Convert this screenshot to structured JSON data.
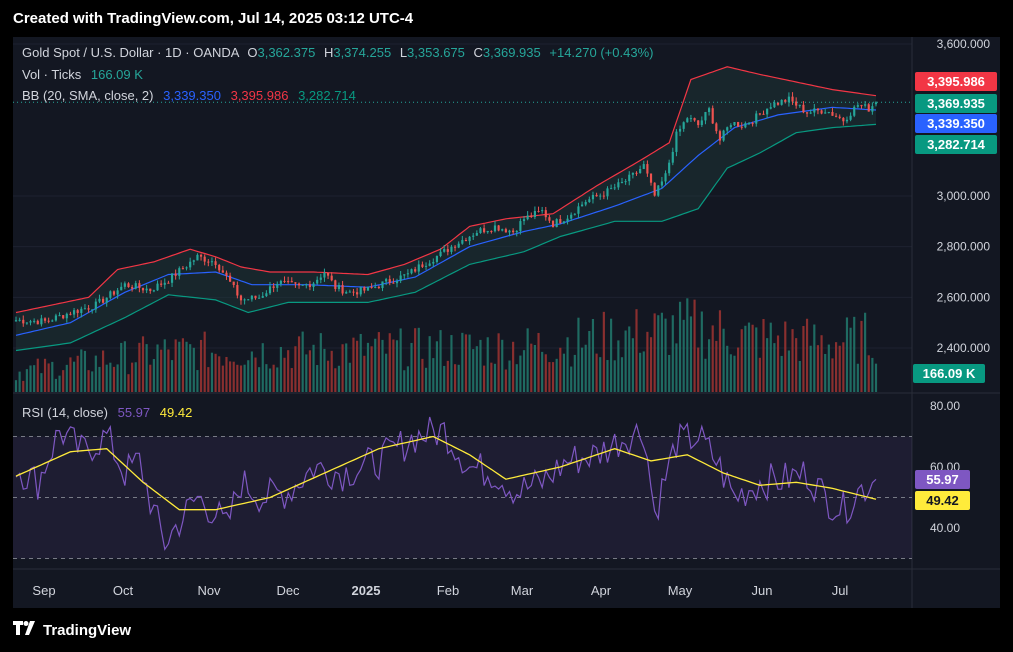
{
  "header": {
    "title": "Created with TradingView.com, Jul 14, 2025 03:12 UTC-4"
  },
  "legend": {
    "symbol": "Gold Spot / U.S. Dollar · 1D · OANDA",
    "o_label": "O",
    "o_value": "3,362.375",
    "h_label": "H",
    "h_value": "3,374.255",
    "l_label": "L",
    "l_value": "3,353.675",
    "c_label": "C",
    "c_value": "3,369.935",
    "change": "+14.270 (+0.43%)",
    "vol_label": "Vol · Ticks",
    "vol_value": "166.09 K",
    "bb_label": "BB (20, SMA, close, 2)",
    "bb_basis": "3,339.350",
    "bb_upper": "3,395.986",
    "bb_lower": "3,282.714",
    "rsi_label": "RSI (14, close)",
    "rsi_value": "55.97",
    "rsi_ma": "49.42"
  },
  "badges": {
    "upper": "3,395.986",
    "close": "3,369.935",
    "basis": "3,339.350",
    "lower": "3,282.714",
    "volume": "166.09 K",
    "rsi": "55.97",
    "rsi_ma": "49.42"
  },
  "colors": {
    "up": "#26a69a",
    "down": "#ef5350",
    "basis": "#2962ff",
    "upper": "#f23645",
    "lower": "#089981",
    "rsi": "#7e57c2",
    "rsi_ma": "#ffeb3b",
    "bg": "#131722"
  },
  "brand": "TradingView",
  "chart_data": {
    "type": "candlestick",
    "price_axis": {
      "ticks": [
        "3,600.000",
        "3,000.000",
        "2,800.000",
        "2,600.000",
        "2,400.000"
      ],
      "values": [
        3600,
        3000,
        2800,
        2600,
        2400
      ]
    },
    "rsi_axis": {
      "ticks": [
        "80.00",
        "60.00",
        "40.00"
      ],
      "values": [
        80,
        60,
        40
      ],
      "bands": [
        70,
        50,
        30
      ]
    },
    "time_axis": [
      "Sep",
      "Oct",
      "Nov",
      "Dec",
      "2025",
      "Feb",
      "Mar",
      "Apr",
      "May",
      "Jun",
      "Jul"
    ],
    "close_anchors": [
      [
        0,
        2510
      ],
      [
        8,
        2505
      ],
      [
        15,
        2540
      ],
      [
        22,
        2570
      ],
      [
        30,
        2650
      ],
      [
        37,
        2630
      ],
      [
        42,
        2670
      ],
      [
        50,
        2760
      ],
      [
        55,
        2740
      ],
      [
        58,
        2680
      ],
      [
        62,
        2590
      ],
      [
        67,
        2600
      ],
      [
        72,
        2660
      ],
      [
        78,
        2640
      ],
      [
        82,
        2660
      ],
      [
        85,
        2700
      ],
      [
        88,
        2640
      ],
      [
        92,
        2620
      ],
      [
        97,
        2630
      ],
      [
        102,
        2660
      ],
      [
        108,
        2690
      ],
      [
        112,
        2730
      ],
      [
        117,
        2770
      ],
      [
        121,
        2810
      ],
      [
        127,
        2860
      ],
      [
        132,
        2880
      ],
      [
        137,
        2860
      ],
      [
        140,
        2910
      ],
      [
        145,
        2940
      ],
      [
        148,
        2890
      ],
      [
        152,
        2920
      ],
      [
        157,
        2980
      ],
      [
        162,
        3010
      ],
      [
        167,
        3050
      ],
      [
        170,
        3080
      ],
      [
        173,
        3120
      ],
      [
        176,
        3000
      ],
      [
        179,
        3080
      ],
      [
        182,
        3240
      ],
      [
        185,
        3310
      ],
      [
        188,
        3280
      ],
      [
        191,
        3340
      ],
      [
        194,
        3220
      ],
      [
        197,
        3290
      ],
      [
        200,
        3280
      ],
      [
        203,
        3300
      ],
      [
        208,
        3360
      ],
      [
        213,
        3380
      ],
      [
        218,
        3330
      ],
      [
        223,
        3340
      ],
      [
        228,
        3300
      ],
      [
        232,
        3360
      ],
      [
        235,
        3345
      ],
      [
        237,
        3369.935
      ]
    ],
    "bb_upper_anchors": [
      [
        0,
        2540
      ],
      [
        20,
        2600
      ],
      [
        28,
        2710
      ],
      [
        38,
        2740
      ],
      [
        48,
        2790
      ],
      [
        55,
        2760
      ],
      [
        62,
        2720
      ],
      [
        70,
        2700
      ],
      [
        82,
        2700
      ],
      [
        97,
        2690
      ],
      [
        107,
        2730
      ],
      [
        117,
        2790
      ],
      [
        125,
        2880
      ],
      [
        135,
        2910
      ],
      [
        148,
        2930
      ],
      [
        160,
        3040
      ],
      [
        172,
        3140
      ],
      [
        180,
        3210
      ],
      [
        186,
        3460
      ],
      [
        196,
        3510
      ],
      [
        205,
        3480
      ],
      [
        215,
        3450
      ],
      [
        225,
        3420
      ],
      [
        237,
        3395.986
      ]
    ],
    "bb_basis_anchors": [
      [
        0,
        2450
      ],
      [
        15,
        2500
      ],
      [
        30,
        2620
      ],
      [
        42,
        2690
      ],
      [
        55,
        2700
      ],
      [
        65,
        2650
      ],
      [
        80,
        2650
      ],
      [
        97,
        2640
      ],
      [
        110,
        2680
      ],
      [
        125,
        2800
      ],
      [
        140,
        2860
      ],
      [
        150,
        2890
      ],
      [
        165,
        2960
      ],
      [
        178,
        3030
      ],
      [
        188,
        3160
      ],
      [
        198,
        3270
      ],
      [
        210,
        3320
      ],
      [
        225,
        3350
      ],
      [
        237,
        3339.35
      ]
    ],
    "bb_lower_anchors": [
      [
        0,
        2390
      ],
      [
        15,
        2420
      ],
      [
        30,
        2520
      ],
      [
        42,
        2610
      ],
      [
        55,
        2590
      ],
      [
        64,
        2540
      ],
      [
        75,
        2580
      ],
      [
        97,
        2580
      ],
      [
        110,
        2620
      ],
      [
        125,
        2730
      ],
      [
        140,
        2780
      ],
      [
        150,
        2840
      ],
      [
        165,
        2900
      ],
      [
        178,
        2900
      ],
      [
        188,
        2950
      ],
      [
        196,
        3110
      ],
      [
        205,
        3170
      ],
      [
        215,
        3250
      ],
      [
        225,
        3270
      ],
      [
        237,
        3282.714
      ]
    ],
    "volume_anchors": [
      [
        0,
        0.2
      ],
      [
        40,
        0.4
      ],
      [
        90,
        0.42
      ],
      [
        140,
        0.45
      ],
      [
        175,
        0.6
      ],
      [
        188,
        0.65
      ],
      [
        200,
        0.55
      ],
      [
        225,
        0.5
      ],
      [
        237,
        0.55
      ]
    ],
    "rsi_anchors": [
      [
        0,
        60
      ],
      [
        6,
        55
      ],
      [
        12,
        72
      ],
      [
        18,
        65
      ],
      [
        25,
        70
      ],
      [
        30,
        58
      ],
      [
        34,
        62
      ],
      [
        38,
        45
      ],
      [
        41,
        35
      ],
      [
        45,
        42
      ],
      [
        50,
        50
      ],
      [
        55,
        45
      ],
      [
        58,
        40
      ],
      [
        62,
        55
      ],
      [
        68,
        50
      ],
      [
        75,
        52
      ],
      [
        82,
        60
      ],
      [
        90,
        58
      ],
      [
        100,
        62
      ],
      [
        110,
        70
      ],
      [
        118,
        72
      ],
      [
        125,
        60
      ],
      [
        132,
        58
      ],
      [
        138,
        52
      ],
      [
        145,
        55
      ],
      [
        152,
        62
      ],
      [
        160,
        64
      ],
      [
        168,
        70
      ],
      [
        173,
        72
      ],
      [
        176,
        45
      ],
      [
        182,
        68
      ],
      [
        188,
        70
      ],
      [
        193,
        62
      ],
      [
        198,
        50
      ],
      [
        205,
        55
      ],
      [
        212,
        56
      ],
      [
        218,
        58
      ],
      [
        223,
        50
      ],
      [
        228,
        46
      ],
      [
        232,
        52
      ],
      [
        237,
        55.97
      ]
    ],
    "rsi_ma_anchors": [
      [
        0,
        57
      ],
      [
        15,
        65
      ],
      [
        25,
        66
      ],
      [
        35,
        55
      ],
      [
        45,
        46
      ],
      [
        55,
        46
      ],
      [
        70,
        50
      ],
      [
        85,
        58
      ],
      [
        100,
        66
      ],
      [
        115,
        70
      ],
      [
        125,
        64
      ],
      [
        135,
        56
      ],
      [
        150,
        60
      ],
      [
        165,
        66
      ],
      [
        175,
        62
      ],
      [
        185,
        64
      ],
      [
        195,
        58
      ],
      [
        205,
        54
      ],
      [
        215,
        55
      ],
      [
        225,
        53
      ],
      [
        237,
        49.42
      ]
    ],
    "last": {
      "open": 3362.375,
      "high": 3374.255,
      "low": 3353.675,
      "close": 3369.935,
      "rsi": 55.97,
      "rsi_ma": 49.42
    }
  }
}
